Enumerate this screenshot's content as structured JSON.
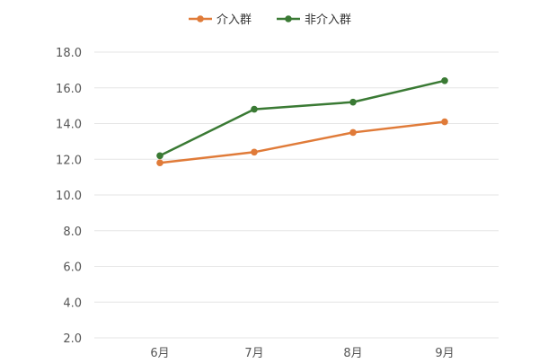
{
  "chart_data": {
    "type": "line",
    "title": "",
    "xlabel": "",
    "ylabel": "",
    "categories": [
      "6月",
      "7月",
      "8月",
      "9月"
    ],
    "series": [
      {
        "name": "介入群",
        "color": "#e07b39",
        "values": [
          11.8,
          12.4,
          13.5,
          14.1
        ]
      },
      {
        "name": "非介入群",
        "color": "#3a7a34",
        "values": [
          12.2,
          14.8,
          15.2,
          16.4
        ]
      }
    ],
    "ylim": [
      2.0,
      18.0
    ],
    "yticks": [
      "2.0",
      "4.0",
      "6.0",
      "8.0",
      "10.0",
      "12.0",
      "14.0",
      "16.0",
      "18.0"
    ],
    "grid": true,
    "legend_position": "top-center"
  }
}
